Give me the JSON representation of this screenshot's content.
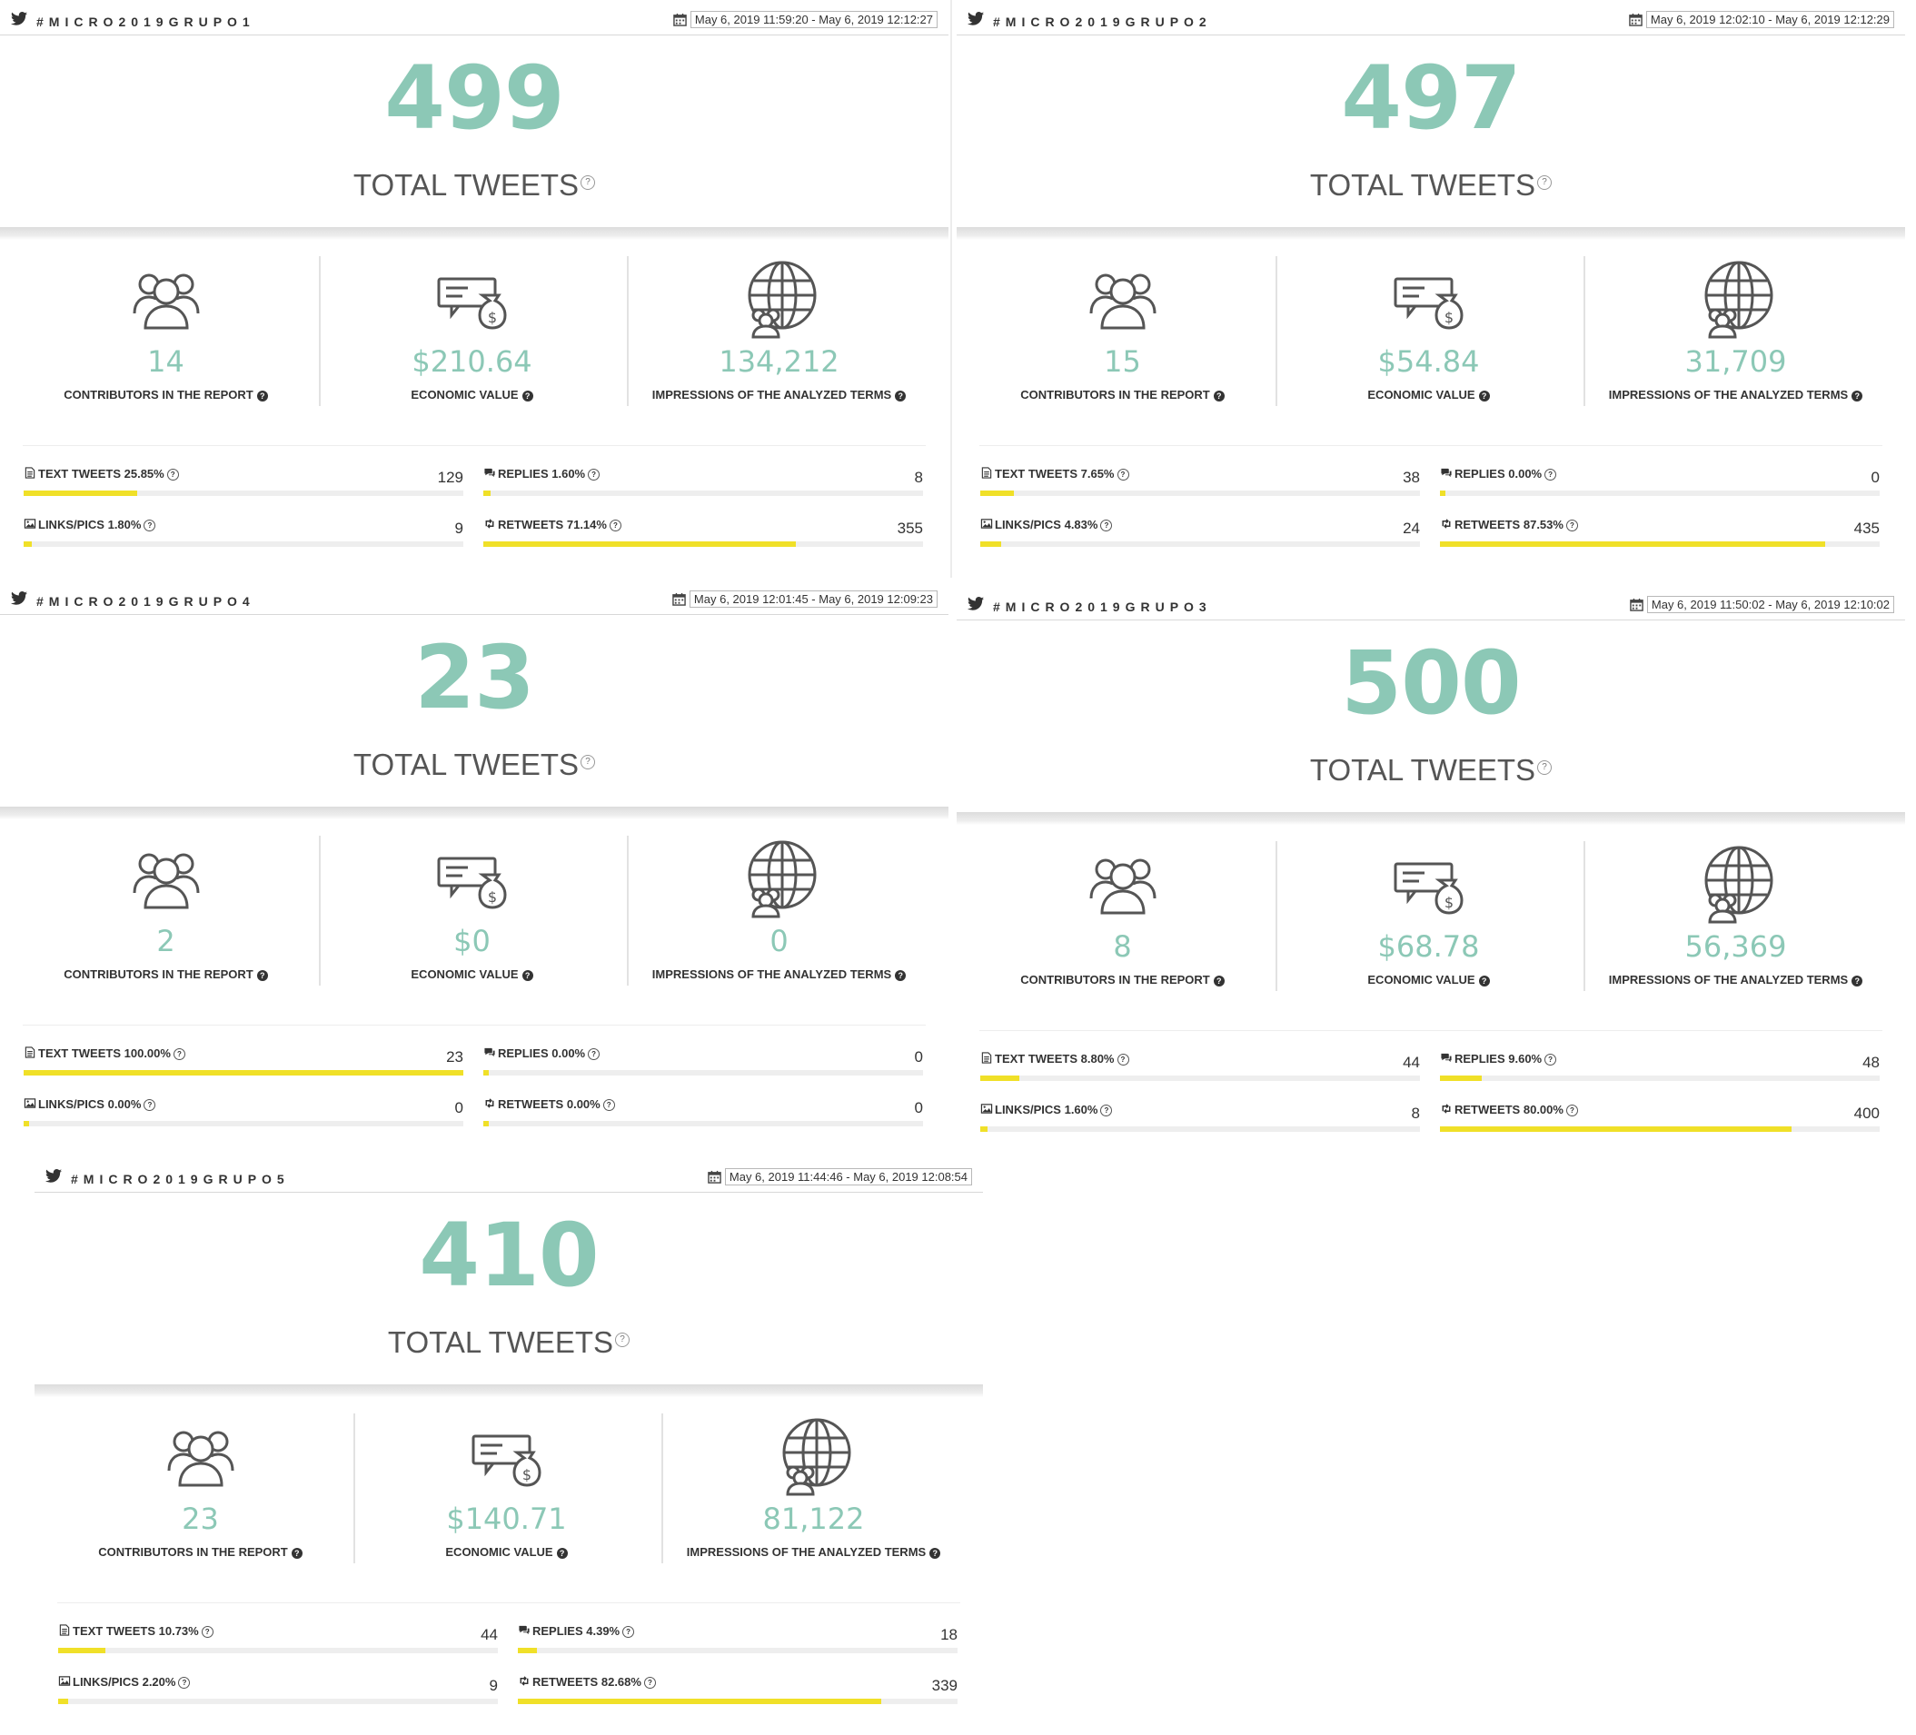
{
  "common": {
    "total_label": "TOTAL TWEETS",
    "contributors_label": "CONTRIBUTORS IN THE REPORT",
    "economic_label": "ECONOMIC VALUE",
    "impressions_label": "IMPRESSIONS OF THE ANALYZED TERMS",
    "text_tweets_label": "TEXT TWEETS",
    "replies_label": "REPLIES",
    "links_label": "LINKS/PICS",
    "retweets_label": "RETWEETS",
    "colors": {
      "accent": "#8cc8b6",
      "bar": "#f0e028",
      "track": "#eeeeee"
    },
    "icons": [
      "twitter-icon",
      "calendar-icon",
      "contributors-icon",
      "economic-value-icon",
      "impressions-globe-icon",
      "document-icon",
      "comments-icon",
      "image-icon",
      "retweet-icon",
      "help-icon"
    ]
  },
  "panels": [
    {
      "hashtag": "#MICRO2019GRUPO1",
      "date_range": "May 6, 2019 11:59:20 - May 6, 2019 12:12:27",
      "total": "499",
      "contributors": "14",
      "economic": "$210.64",
      "impressions": "134,212",
      "text_tweets": {
        "pct": "25.85%",
        "count": "129",
        "fraction": 0.2585
      },
      "replies": {
        "pct": "1.60%",
        "count": "8",
        "fraction": 0.016
      },
      "links": {
        "pct": "1.80%",
        "count": "9",
        "fraction": 0.018
      },
      "retweets": {
        "pct": "71.14%",
        "count": "355",
        "fraction": 0.7114
      }
    },
    {
      "hashtag": "#MICRO2019GRUPO2",
      "date_range": "May 6, 2019 12:02:10 - May 6, 2019 12:12:29",
      "total": "497",
      "contributors": "15",
      "economic": "$54.84",
      "impressions": "31,709",
      "text_tweets": {
        "pct": "7.65%",
        "count": "38",
        "fraction": 0.0765
      },
      "replies": {
        "pct": "0.00%",
        "count": "0",
        "fraction": 0.0
      },
      "links": {
        "pct": "4.83%",
        "count": "24",
        "fraction": 0.0483
      },
      "retweets": {
        "pct": "87.53%",
        "count": "435",
        "fraction": 0.8753
      }
    },
    {
      "hashtag": "#MICRO2019GRUPO4",
      "date_range": "May 6, 2019 12:01:45 - May 6, 2019 12:09:23",
      "total": "23",
      "contributors": "2",
      "economic": "$0",
      "impressions": "0",
      "text_tweets": {
        "pct": "100.00%",
        "count": "23",
        "fraction": 1.0
      },
      "replies": {
        "pct": "0.00%",
        "count": "0",
        "fraction": 0.0
      },
      "links": {
        "pct": "0.00%",
        "count": "0",
        "fraction": 0.0
      },
      "retweets": {
        "pct": "0.00%",
        "count": "0",
        "fraction": 0.0
      }
    },
    {
      "hashtag": "#MICRO2019GRUPO3",
      "date_range": "May 6, 2019 11:50:02 - May 6, 2019 12:10:02",
      "total": "500",
      "contributors": "8",
      "economic": "$68.78",
      "impressions": "56,369",
      "text_tweets": {
        "pct": "8.80%",
        "count": "44",
        "fraction": 0.088
      },
      "replies": {
        "pct": "9.60%",
        "count": "48",
        "fraction": 0.096
      },
      "links": {
        "pct": "1.60%",
        "count": "8",
        "fraction": 0.016
      },
      "retweets": {
        "pct": "80.00%",
        "count": "400",
        "fraction": 0.8
      }
    },
    {
      "hashtag": "#MICRO2019GRUPO5",
      "date_range": "May 6, 2019 11:44:46 - May 6, 2019 12:08:54",
      "total": "410",
      "contributors": "23",
      "economic": "$140.71",
      "impressions": "81,122",
      "text_tweets": {
        "pct": "10.73%",
        "count": "44",
        "fraction": 0.1073
      },
      "replies": {
        "pct": "4.39%",
        "count": "18",
        "fraction": 0.0439
      },
      "links": {
        "pct": "2.20%",
        "count": "9",
        "fraction": 0.022
      },
      "retweets": {
        "pct": "82.68%",
        "count": "339",
        "fraction": 0.8268
      }
    }
  ]
}
